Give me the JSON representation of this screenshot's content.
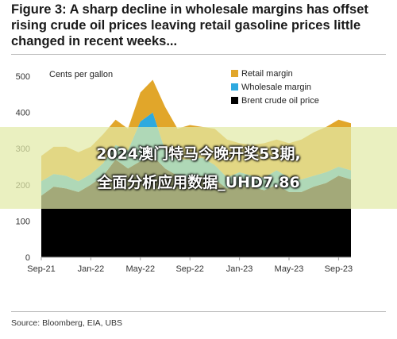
{
  "figure_title": "Figure 3: A sharp decline in wholesale margins has offset rising crude oil prices leaving retail gasoline prices little changed in recent weeks...",
  "source": "Source: Bloomberg, EIA, UBS",
  "overlay": {
    "line1": "2024澳门特马今晚开奖53期,",
    "line2": "全面分析应用数据_UHD7.86"
  },
  "colors": {
    "retail_margin": "#E1A62A",
    "wholesale_margin": "#2EA9DF",
    "brent": "#000000",
    "axis": "#9e9e9e",
    "overlay_band": "#E2EAA8"
  },
  "chart_data": {
    "type": "area",
    "stacked": true,
    "ylabel": "Cents per gallon",
    "ylim": [
      0,
      500
    ],
    "yticks": [
      0,
      100,
      200,
      300,
      400,
      500
    ],
    "grid": false,
    "legend_position": "top-right",
    "x": [
      "2021-09",
      "2021-10",
      "2021-11",
      "2021-12",
      "2022-01",
      "2022-02",
      "2022-03",
      "2022-04",
      "2022-05",
      "2022-06",
      "2022-07",
      "2022-08",
      "2022-09",
      "2022-10",
      "2022-11",
      "2022-12",
      "2023-01",
      "2023-02",
      "2023-03",
      "2023-04",
      "2023-05",
      "2023-06",
      "2023-07",
      "2023-08",
      "2023-09",
      "2023-10"
    ],
    "xtick_labels": [
      "Sep-21",
      "Jan-22",
      "May-22",
      "Sep-22",
      "Jan-23",
      "May-23",
      "Sep-23"
    ],
    "xtick_positions": [
      "2021-09",
      "2022-01",
      "2022-05",
      "2022-09",
      "2023-01",
      "2023-05",
      "2023-09"
    ],
    "series": [
      {
        "name": "Brent crude oil price",
        "values": [
          170,
          195,
          190,
          180,
          200,
          225,
          270,
          245,
          265,
          280,
          245,
          225,
          215,
          225,
          215,
          190,
          200,
          195,
          185,
          200,
          180,
          180,
          195,
          205,
          225,
          215
        ]
      },
      {
        "name": "Wholesale margin",
        "values": [
          40,
          35,
          35,
          30,
          30,
          35,
          40,
          50,
          110,
          120,
          50,
          45,
          55,
          50,
          40,
          30,
          35,
          30,
          35,
          40,
          40,
          35,
          30,
          30,
          25,
          25
        ]
      },
      {
        "name": "Retail margin",
        "values": [
          70,
          75,
          80,
          80,
          75,
          80,
          70,
          60,
          80,
          90,
          120,
          85,
          95,
          85,
          100,
          105,
          80,
          85,
          95,
          85,
          95,
          110,
          120,
          125,
          130,
          130
        ]
      }
    ]
  }
}
